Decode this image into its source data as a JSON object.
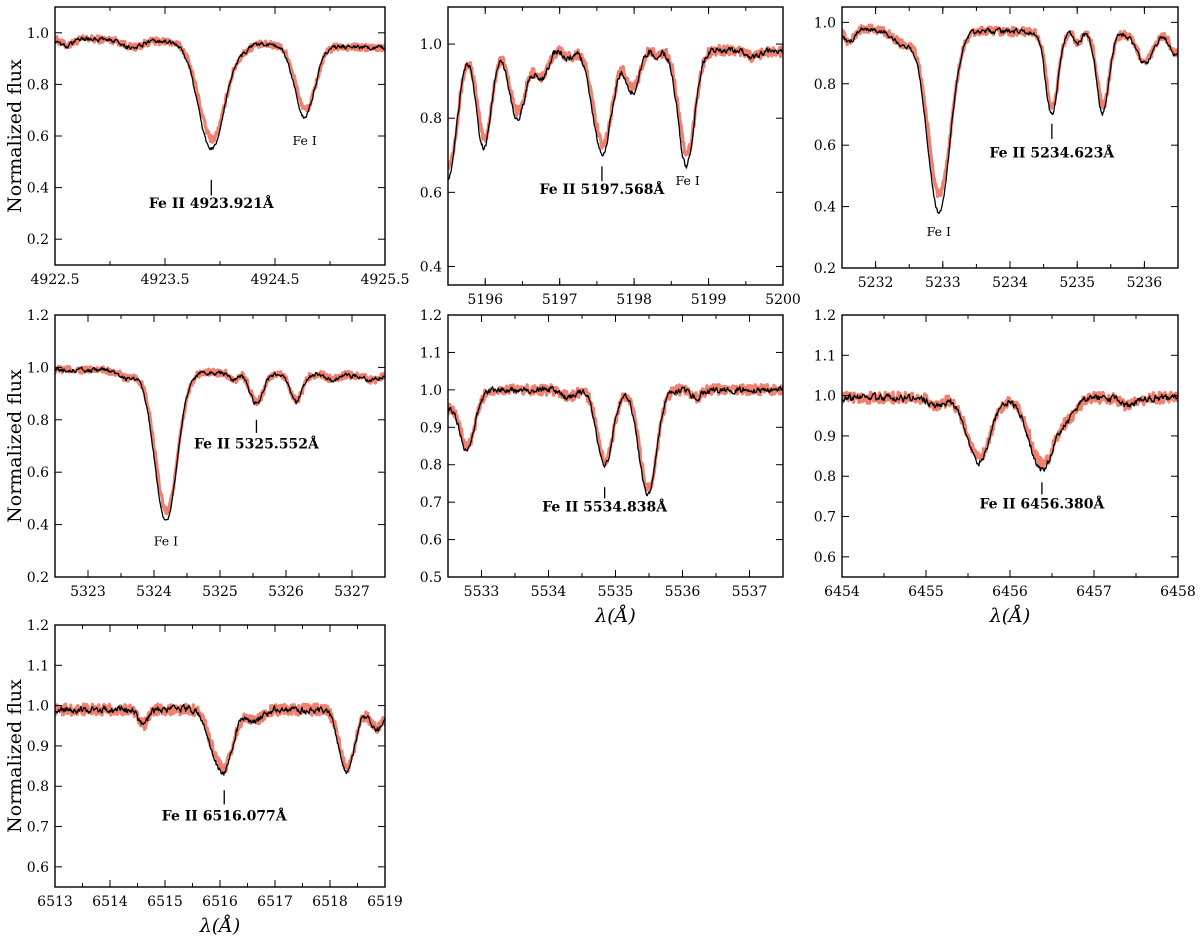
{
  "chart_data": [
    {
      "type": "line",
      "xlim": [
        4922.5,
        4925.5
      ],
      "ylim": [
        0.1,
        1.1
      ],
      "xticks": [
        4922.5,
        4923.5,
        4924.5,
        4925.5
      ],
      "xtick_labels": [
        "4922.5",
        "4923.5",
        "4924.5",
        "4925.5"
      ],
      "yticks": [
        0.2,
        0.4,
        0.6,
        0.8,
        1.0
      ],
      "ytick_labels": [
        "0.2",
        "0.4",
        "0.6",
        "0.8",
        "1.0"
      ],
      "ylabel": "Normalized flux",
      "xlabel": "",
      "continuum": 0.96,
      "slope": -0.02,
      "lines": [
        {
          "c": 4923.92,
          "d": 0.43,
          "s": 0.12
        },
        {
          "c": 4924.77,
          "d": 0.29,
          "s": 0.09
        },
        {
          "c": 4923.2,
          "d": 0.03,
          "s": 0.08
        },
        {
          "c": 4924.2,
          "d": 0.02,
          "s": 0.06
        },
        {
          "c": 4922.6,
          "d": 0.03,
          "s": 0.06
        }
      ],
      "obs_depth_scale": 0.9,
      "marker": {
        "x": 4923.921,
        "y": [
          0.37,
          0.43
        ]
      },
      "label": {
        "text": "Fe II 4923.921Å",
        "x": 4923.921,
        "y": 0.32
      },
      "feature_labels": [
        {
          "text": "Fe I",
          "x": 4924.77,
          "y": 0.565
        }
      ]
    },
    {
      "type": "line",
      "xlim": [
        5195.5,
        5200
      ],
      "ylim": [
        0.35,
        1.1
      ],
      "xticks": [
        5196,
        5197,
        5198,
        5199,
        5200
      ],
      "xtick_labels": [
        "5196",
        "5197",
        "5198",
        "5199",
        "5200"
      ],
      "yticks": [
        0.4,
        0.6,
        0.8,
        1.0
      ],
      "ytick_labels": [
        "0.4",
        "0.6",
        "0.8",
        "1.0"
      ],
      "ylabel": "",
      "xlabel": "",
      "continuum": 0.99,
      "slope": -0.01,
      "lines": [
        {
          "c": 5195.5,
          "d": 0.36,
          "s": 0.12
        },
        {
          "c": 5195.98,
          "d": 0.28,
          "s": 0.1
        },
        {
          "c": 5196.43,
          "d": 0.2,
          "s": 0.11
        },
        {
          "c": 5196.75,
          "d": 0.09,
          "s": 0.1
        },
        {
          "c": 5197.57,
          "d": 0.29,
          "s": 0.13
        },
        {
          "c": 5197.12,
          "d": 0.03,
          "s": 0.08
        },
        {
          "c": 5197.98,
          "d": 0.12,
          "s": 0.09
        },
        {
          "c": 5198.7,
          "d": 0.32,
          "s": 0.11
        },
        {
          "c": 5198.3,
          "d": 0.02,
          "s": 0.06
        },
        {
          "c": 5199.6,
          "d": 0.02,
          "s": 0.08
        }
      ],
      "obs_depth_scale": 0.9,
      "marker": {
        "x": 5197.568,
        "y": [
          0.63,
          0.67
        ]
      },
      "label": {
        "text": "Fe II 5197.568Å",
        "x": 5197.568,
        "y": 0.595
      },
      "feature_labels": [
        {
          "text": "Fe I",
          "x": 5198.72,
          "y": 0.62
        }
      ]
    },
    {
      "type": "line",
      "xlim": [
        5231.5,
        5236.5
      ],
      "ylim": [
        0.2,
        1.05
      ],
      "xticks": [
        5232,
        5233,
        5234,
        5235,
        5236
      ],
      "xtick_labels": [
        "5232",
        "5233",
        "5234",
        "5235",
        "5236"
      ],
      "yticks": [
        0.2,
        0.4,
        0.6,
        0.8,
        1.0
      ],
      "ytick_labels": [
        "0.2",
        "0.4",
        "0.6",
        "0.8",
        "1.0"
      ],
      "ylabel": "",
      "xlabel": "",
      "continuum": 0.97,
      "slope": -0.01,
      "lines": [
        {
          "c": 5232.94,
          "d": 0.61,
          "s": 0.17
        },
        {
          "c": 5232.4,
          "d": 0.05,
          "s": 0.15
        },
        {
          "c": 5234.62,
          "d": 0.28,
          "s": 0.09
        },
        {
          "c": 5235.38,
          "d": 0.27,
          "s": 0.09
        },
        {
          "c": 5235.0,
          "d": 0.04,
          "s": 0.05
        },
        {
          "c": 5236.0,
          "d": 0.1,
          "s": 0.12
        },
        {
          "c": 5236.45,
          "d": 0.07,
          "s": 0.07
        },
        {
          "c": 5231.6,
          "d": 0.05,
          "s": 0.07
        }
      ],
      "obs_depth_scale": 0.9,
      "marker": {
        "x": 5234.623,
        "y": [
          0.62,
          0.67
        ]
      },
      "label": {
        "text": "Fe II 5234.623Å",
        "x": 5234.623,
        "y": 0.56
      },
      "feature_labels": [
        {
          "text": "Fe I",
          "x": 5232.94,
          "y": 0.305
        }
      ]
    },
    {
      "type": "line",
      "xlim": [
        5322.5,
        5327.5
      ],
      "ylim": [
        0.2,
        1.2
      ],
      "xticks": [
        5323,
        5324,
        5325,
        5326,
        5327
      ],
      "xtick_labels": [
        "5323",
        "5324",
        "5325",
        "5326",
        "5327"
      ],
      "yticks": [
        0.2,
        0.4,
        0.6,
        0.8,
        1.0,
        1.2
      ],
      "ytick_labels": [
        "0.2",
        "0.4",
        "0.6",
        "0.8",
        "1.0",
        "1.2"
      ],
      "ylabel": "Normalized flux",
      "xlabel": "",
      "continuum": 0.98,
      "slope": -0.012,
      "lines": [
        {
          "c": 5324.18,
          "d": 0.58,
          "s": 0.17
        },
        {
          "c": 5323.6,
          "d": 0.03,
          "s": 0.12
        },
        {
          "c": 5325.55,
          "d": 0.12,
          "s": 0.1
        },
        {
          "c": 5326.15,
          "d": 0.11,
          "s": 0.09
        },
        {
          "c": 5325.2,
          "d": 0.03,
          "s": 0.06
        },
        {
          "c": 5326.7,
          "d": 0.02,
          "s": 0.08
        },
        {
          "c": 5327.3,
          "d": 0.02,
          "s": 0.08
        }
      ],
      "obs_depth_scale": 0.93,
      "marker": {
        "x": 5325.552,
        "y": [
          0.75,
          0.8
        ]
      },
      "label": {
        "text": "Fe II 5325.552Å",
        "x": 5325.552,
        "y": 0.69
      },
      "feature_labels": [
        {
          "text": "Fe I",
          "x": 5324.18,
          "y": 0.32
        }
      ]
    },
    {
      "type": "line",
      "xlim": [
        5532.5,
        5537.5
      ],
      "ylim": [
        0.5,
        1.2
      ],
      "xticks": [
        5533,
        5534,
        5535,
        5536,
        5537
      ],
      "xtick_labels": [
        "5533",
        "5534",
        "5535",
        "5536",
        "5537"
      ],
      "yticks": [
        0.5,
        0.6,
        0.7,
        0.8,
        0.9,
        1.0,
        1.1,
        1.2
      ],
      "ytick_labels": [
        "0.5",
        "0.6",
        "0.7",
        "0.8",
        "0.9",
        "1.0",
        "1.1",
        "1.2"
      ],
      "ylabel": "",
      "xlabel": "λ(Å)",
      "continuum": 1.0,
      "slope": 0.0,
      "lines": [
        {
          "c": 5532.78,
          "d": 0.16,
          "s": 0.12
        },
        {
          "c": 5532.45,
          "d": 0.05,
          "s": 0.1
        },
        {
          "c": 5534.84,
          "d": 0.2,
          "s": 0.12
        },
        {
          "c": 5535.48,
          "d": 0.28,
          "s": 0.13
        },
        {
          "c": 5534.3,
          "d": 0.02,
          "s": 0.1
        },
        {
          "c": 5536.2,
          "d": 0.02,
          "s": 0.08
        }
      ],
      "obs_depth_scale": 0.94,
      "marker": {
        "x": 5534.838,
        "y": [
          0.71,
          0.74
        ]
      },
      "label": {
        "text": "Fe II 5534.838Å",
        "x": 5534.838,
        "y": 0.675
      },
      "feature_labels": []
    },
    {
      "type": "line",
      "xlim": [
        6454,
        6458
      ],
      "ylim": [
        0.55,
        1.2
      ],
      "xticks": [
        6454,
        6455,
        6456,
        6457,
        6458
      ],
      "xtick_labels": [
        "6454",
        "6455",
        "6456",
        "6457",
        "6458"
      ],
      "yticks": [
        0.6,
        0.7,
        0.8,
        0.9,
        1.0,
        1.1,
        1.2
      ],
      "ytick_labels": [
        "0.6",
        "0.7",
        "0.8",
        "0.9",
        "1.0",
        "1.1",
        "1.2"
      ],
      "ylabel": "",
      "xlabel": "λ(Å)",
      "continuum": 0.995,
      "slope": 0.0,
      "lines": [
        {
          "c": 6455.62,
          "d": 0.16,
          "s": 0.14
        },
        {
          "c": 6456.38,
          "d": 0.18,
          "s": 0.15
        },
        {
          "c": 6455.12,
          "d": 0.02,
          "s": 0.08
        },
        {
          "c": 6456.7,
          "d": 0.04,
          "s": 0.1
        },
        {
          "c": 6457.4,
          "d": 0.02,
          "s": 0.1
        }
      ],
      "obs_depth_scale": 0.92,
      "marker": {
        "x": 6456.38,
        "y": [
          0.755,
          0.785
        ]
      },
      "label": {
        "text": "Fe II 6456.380Å",
        "x": 6456.38,
        "y": 0.72
      },
      "feature_labels": []
    },
    {
      "type": "line",
      "xlim": [
        6513,
        6519
      ],
      "ylim": [
        0.55,
        1.2
      ],
      "xticks": [
        6513,
        6514,
        6515,
        6516,
        6517,
        6518,
        6519
      ],
      "xtick_labels": [
        "6513",
        "6514",
        "6515",
        "6516",
        "6517",
        "6518",
        "6519"
      ],
      "yticks": [
        0.6,
        0.7,
        0.8,
        0.9,
        1.0,
        1.1,
        1.2
      ],
      "ytick_labels": [
        "0.6",
        "0.7",
        "0.8",
        "0.9",
        "1.0",
        "1.1",
        "1.2"
      ],
      "ylabel": "Normalized flux",
      "xlabel": "λ(Å)",
      "continuum": 0.99,
      "slope": 0.0,
      "lines": [
        {
          "c": 6516.08,
          "d": 0.15,
          "s": 0.15
        },
        {
          "c": 6515.85,
          "d": 0.06,
          "s": 0.12
        },
        {
          "c": 6514.6,
          "d": 0.04,
          "s": 0.08
        },
        {
          "c": 6516.6,
          "d": 0.03,
          "s": 0.15
        },
        {
          "c": 6518.3,
          "d": 0.16,
          "s": 0.14
        },
        {
          "c": 6518.85,
          "d": 0.05,
          "s": 0.12
        }
      ],
      "obs_depth_scale": 0.92,
      "marker": {
        "x": 6516.077,
        "y": [
          0.755,
          0.79
        ]
      },
      "label": {
        "text": "Fe II 6516.077Å",
        "x": 6516.077,
        "y": 0.715
      },
      "feature_labels": []
    }
  ]
}
